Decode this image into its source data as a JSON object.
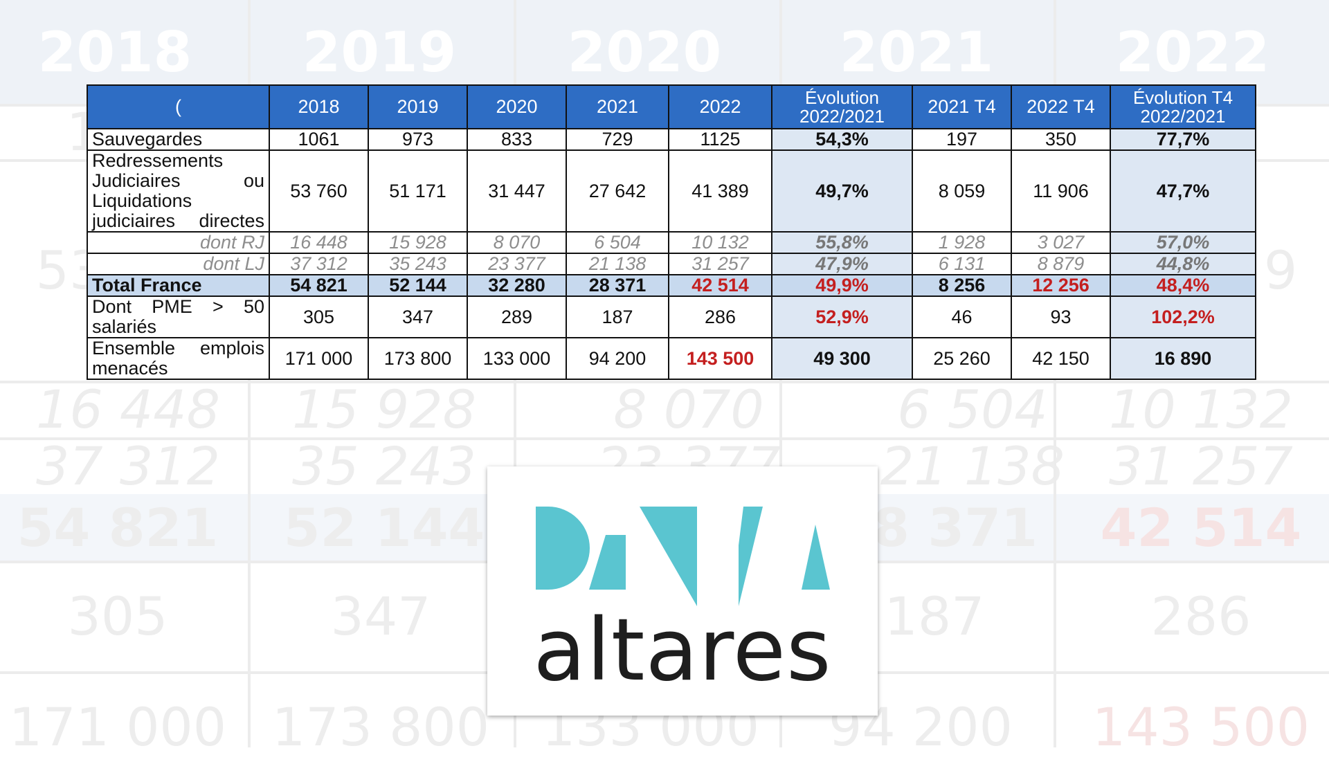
{
  "background_table": {
    "header": [
      "2018",
      "2019",
      "2020",
      "2021",
      "2022"
    ],
    "rows": [
      [
        "1",
        "",
        "",
        "",
        ""
      ],
      [
        "53",
        "",
        "",
        "",
        "9"
      ],
      [
        "16 448",
        "15 928",
        "8 070",
        "6 504",
        "10 132"
      ],
      [
        "37 312",
        "35 243",
        "23 377",
        "21 138",
        "31 257"
      ],
      [
        "54 821",
        "52 144",
        "",
        "8 371",
        "42 514"
      ],
      [
        "305",
        "347",
        "",
        "187",
        "286"
      ],
      [
        "171 000",
        "173 800",
        "133 000",
        "94 200",
        "143 500"
      ]
    ]
  },
  "table": {
    "corner": "(",
    "headers": [
      "2018",
      "2019",
      "2020",
      "2021",
      "2022",
      "Évolution 2022/2021",
      "2021 T4",
      "2022 T4",
      "Évolution T4 2022/2021"
    ],
    "rows": [
      {
        "label": "Sauvegardes",
        "values": [
          "1061",
          "973",
          "833",
          "729",
          "1125",
          "54,3%",
          "197",
          "350",
          "77,7%"
        ]
      },
      {
        "label": "Redressements Judiciaires ou Liquidations judiciaires directes",
        "values": [
          "53 760",
          "51 171",
          "31 447",
          "27 642",
          "41 389",
          "49,7%",
          "8 059",
          "11 906",
          "47,7%"
        ]
      },
      {
        "label": "dont RJ",
        "values": [
          "16 448",
          "15 928",
          "8 070",
          "6 504",
          "10 132",
          "55,8%",
          "1 928",
          "3 027",
          "57,0%"
        ]
      },
      {
        "label": "dont LJ",
        "values": [
          "37 312",
          "35 243",
          "23 377",
          "21 138",
          "31 257",
          "47,9%",
          "6 131",
          "8 879",
          "44,8%"
        ]
      },
      {
        "label": "Total France",
        "values": [
          "54 821",
          "52 144",
          "32 280",
          "28 371",
          "42 514",
          "49,9%",
          "8 256",
          "12 256",
          "48,4%"
        ]
      },
      {
        "label": "Dont PME > 50 salariés",
        "values": [
          "305",
          "347",
          "289",
          "187",
          "286",
          "52,9%",
          "46",
          "93",
          "102,2%"
        ]
      },
      {
        "label": "Ensemble emplois menacés",
        "values": [
          "171 000",
          "173 800",
          "133 000",
          "94 200",
          "143 500",
          "49 300",
          "25 260",
          "42 150",
          "16 890"
        ]
      }
    ]
  },
  "logo": {
    "text": "altares",
    "mark": "DATA"
  },
  "colors": {
    "header_blue": "#2e6dc4",
    "evolution_fill": "#dde7f3",
    "total_fill": "#c7d9ee",
    "highlight_red": "#c41f1f",
    "logo_teal": "#5ac5d0",
    "logo_text": "#1e1e1e"
  }
}
